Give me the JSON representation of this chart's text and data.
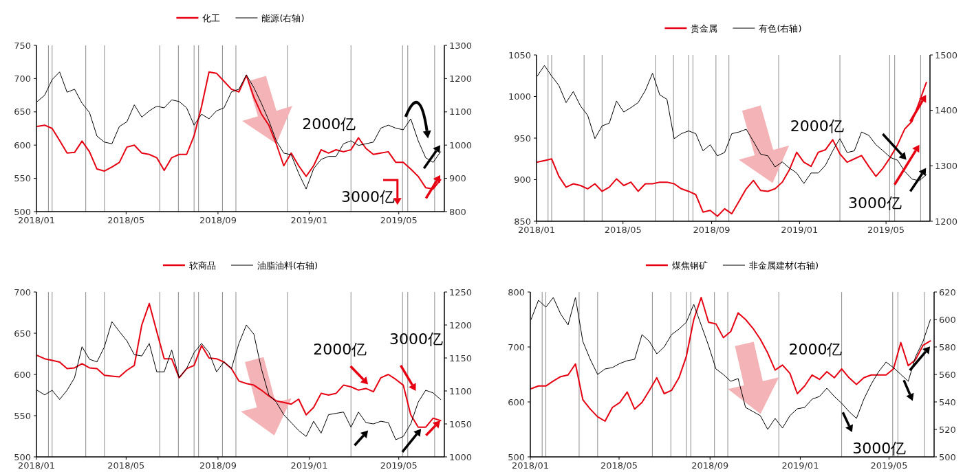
{
  "chart_data": [
    {
      "type": "line",
      "legend": "top",
      "xlim": [
        "2018-01-01",
        "2019-07-01"
      ],
      "xticks": [
        {
          "value": "2018-01-01",
          "label": "2018/01"
        },
        {
          "value": "2018-05-01",
          "label": "2018/05"
        },
        {
          "value": "2018-09-01",
          "label": "2018/09"
        },
        {
          "value": "2019-01-01",
          "label": "2019/01"
        },
        {
          "value": "2019-05-01",
          "label": "2019/05"
        }
      ],
      "ylim": [
        500,
        750
      ],
      "yticks": [
        500,
        550,
        600,
        650,
        700,
        750
      ],
      "y2lim": [
        800,
        1300
      ],
      "y2ticks": [
        800,
        900,
        1000,
        1100,
        1200,
        1300
      ],
      "x": [
        "2018-01-02",
        "2018-01-12",
        "2018-01-22",
        "2018-02-01",
        "2018-02-11",
        "2018-02-21",
        "2018-03-03",
        "2018-03-13",
        "2018-03-23",
        "2018-04-02",
        "2018-04-12",
        "2018-04-22",
        "2018-05-02",
        "2018-05-12",
        "2018-05-22",
        "2018-06-01",
        "2018-06-11",
        "2018-06-21",
        "2018-07-01",
        "2018-07-11",
        "2018-07-21",
        "2018-07-31",
        "2018-08-10",
        "2018-08-20",
        "2018-08-30",
        "2018-09-09",
        "2018-09-19",
        "2018-09-29",
        "2018-10-09",
        "2018-10-19",
        "2018-10-29",
        "2018-11-08",
        "2018-11-18",
        "2018-11-28",
        "2018-12-08",
        "2018-12-18",
        "2018-12-28",
        "2019-01-07",
        "2019-01-17",
        "2019-01-27",
        "2019-02-06",
        "2019-02-16",
        "2019-02-26",
        "2019-03-08",
        "2019-03-18",
        "2019-03-28",
        "2019-04-07",
        "2019-04-17",
        "2019-04-27",
        "2019-05-07",
        "2019-05-17",
        "2019-05-27",
        "2019-06-06",
        "2019-06-16",
        "2019-06-26"
      ],
      "series": [
        {
          "name": "化工",
          "color": "#e60012",
          "values": [
            628,
            630,
            625,
            607,
            588,
            589,
            606,
            590,
            564,
            561,
            567,
            574,
            597,
            600,
            588,
            586,
            581,
            562,
            581,
            586,
            586,
            614,
            658,
            710,
            708,
            696,
            684,
            680,
            705,
            672,
            647,
            630,
            602,
            569,
            588,
            569,
            553,
            569,
            593,
            588,
            593,
            590,
            593,
            611,
            595,
            586,
            588,
            590,
            574,
            574,
            564,
            553,
            536,
            534,
            548
          ]
        },
        {
          "name": "能源(右轴)",
          "color": "#000000",
          "axis": "y2",
          "values": [
            1131,
            1150,
            1197,
            1220,
            1159,
            1168,
            1126,
            1098,
            1027,
            1009,
            1004,
            1056,
            1070,
            1121,
            1084,
            1103,
            1117,
            1112,
            1136,
            1131,
            1112,
            1060,
            1093,
            1079,
            1103,
            1112,
            1160,
            1168,
            1211,
            1173,
            1126,
            1074,
            1013,
            976,
            971,
            915,
            868,
            929,
            957,
            966,
            966,
            1004,
            1013,
            999,
            1004,
            1009,
            1051,
            1060,
            1051,
            1046,
            1079,
            1013,
            962,
            948,
            980
          ]
        }
      ],
      "ref_lines": [
        {
          "axis": "x",
          "value": "2018-01-17"
        },
        {
          "axis": "x",
          "value": "2018-01-22"
        },
        {
          "axis": "x",
          "value": "2018-03-08"
        },
        {
          "axis": "x",
          "value": "2018-04-02"
        },
        {
          "axis": "x",
          "value": "2018-06-15"
        },
        {
          "axis": "x",
          "value": "2018-07-10"
        },
        {
          "axis": "x",
          "value": "2018-07-31"
        },
        {
          "axis": "x",
          "value": "2018-08-06"
        },
        {
          "axis": "x",
          "value": "2018-09-07"
        },
        {
          "axis": "x",
          "value": "2018-09-25"
        },
        {
          "axis": "x",
          "value": "2018-12-03"
        },
        {
          "axis": "x",
          "value": "2019-02-26"
        },
        {
          "axis": "x",
          "value": "2019-05-06"
        },
        {
          "axis": "x",
          "value": "2019-05-13"
        },
        {
          "axis": "x",
          "value": "2019-06-18"
        }
      ],
      "annotations": [
        {
          "text": "2000亿",
          "x": "2018-11-18",
          "y": 602
        },
        "3000亿"
      ]
    },
    {
      "type": "line",
      "legend": "top",
      "xlim": [
        "2018-01-01",
        "2019-07-01"
      ],
      "xticks": [
        {
          "value": "2018-01-01",
          "label": "2018/01"
        },
        {
          "value": "2018-05-01",
          "label": "2018/05"
        },
        {
          "value": "2018-09-01",
          "label": "2018/09"
        },
        {
          "value": "2019-01-01",
          "label": "2019/01"
        },
        {
          "value": "2019-05-01",
          "label": "2019/05"
        }
      ],
      "ylim": [
        850,
        1050
      ],
      "yticks": [
        850,
        900,
        950,
        1000,
        1050
      ],
      "y2lim": [
        1200,
        1500
      ],
      "y2ticks": [
        1200,
        1300,
        1400,
        1500
      ],
      "x": [
        "2018-01-02",
        "2018-01-12",
        "2018-01-22",
        "2018-02-01",
        "2018-02-11",
        "2018-02-21",
        "2018-03-03",
        "2018-03-13",
        "2018-03-23",
        "2018-04-02",
        "2018-04-12",
        "2018-04-22",
        "2018-05-02",
        "2018-05-12",
        "2018-05-22",
        "2018-06-01",
        "2018-06-11",
        "2018-06-21",
        "2018-07-01",
        "2018-07-11",
        "2018-07-21",
        "2018-07-31",
        "2018-08-10",
        "2018-08-20",
        "2018-08-30",
        "2018-09-09",
        "2018-09-19",
        "2018-09-29",
        "2018-10-09",
        "2018-10-19",
        "2018-10-29",
        "2018-11-08",
        "2018-11-18",
        "2018-11-28",
        "2018-12-08",
        "2018-12-18",
        "2018-12-28",
        "2019-01-07",
        "2019-01-17",
        "2019-01-27",
        "2019-02-06",
        "2019-02-16",
        "2019-02-26",
        "2019-03-08",
        "2019-03-18",
        "2019-03-28",
        "2019-04-07",
        "2019-04-17",
        "2019-04-27",
        "2019-05-07",
        "2019-05-17",
        "2019-05-27",
        "2019-06-06",
        "2019-06-16",
        "2019-06-26"
      ],
      "series": [
        {
          "name": "贵金属",
          "color": "#e60012",
          "values": [
            921,
            923,
            925,
            904,
            891,
            895,
            893,
            889,
            895,
            886,
            891,
            901,
            893,
            897,
            886,
            895,
            895,
            897,
            897,
            895,
            889,
            886,
            882,
            861,
            863,
            856,
            865,
            859,
            874,
            889,
            899,
            887,
            886,
            889,
            897,
            912,
            933,
            921,
            916,
            933,
            936,
            948,
            931,
            921,
            925,
            929,
            916,
            904,
            914,
            927,
            942,
            961,
            970,
            993,
            1017
          ]
        },
        {
          "name": "有色(右轴)",
          "color": "#000000",
          "axis": "y2",
          "values": [
            1462,
            1481,
            1462,
            1445,
            1414,
            1434,
            1408,
            1391,
            1349,
            1372,
            1377,
            1417,
            1397,
            1405,
            1414,
            1436,
            1467,
            1428,
            1420,
            1349,
            1358,
            1363,
            1358,
            1327,
            1338,
            1318,
            1324,
            1358,
            1361,
            1366,
            1344,
            1321,
            1318,
            1298,
            1307,
            1296,
            1287,
            1268,
            1287,
            1287,
            1301,
            1327,
            1349,
            1324,
            1327,
            1361,
            1355,
            1338,
            1327,
            1315,
            1310,
            1290,
            1276,
            1273,
            1284
          ]
        }
      ],
      "ref_lines": [
        {
          "axis": "x",
          "value": "2018-01-17"
        },
        {
          "axis": "x",
          "value": "2018-01-22"
        },
        {
          "axis": "x",
          "value": "2018-03-08"
        },
        {
          "axis": "x",
          "value": "2018-04-02"
        },
        {
          "axis": "x",
          "value": "2018-06-15"
        },
        {
          "axis": "x",
          "value": "2018-07-10"
        },
        {
          "axis": "x",
          "value": "2018-07-31"
        },
        {
          "axis": "x",
          "value": "2018-08-06"
        },
        {
          "axis": "x",
          "value": "2018-09-07"
        },
        {
          "axis": "x",
          "value": "2018-09-25"
        },
        {
          "axis": "x",
          "value": "2018-12-03"
        },
        {
          "axis": "x",
          "value": "2019-02-26"
        },
        {
          "axis": "x",
          "value": "2019-05-06"
        },
        {
          "axis": "x",
          "value": "2019-05-13"
        },
        {
          "axis": "x",
          "value": "2019-06-18"
        }
      ],
      "annotations": [
        "2000亿",
        "3000亿"
      ]
    },
    {
      "type": "line",
      "legend": "top",
      "xlim": [
        "2018-01-01",
        "2019-07-01"
      ],
      "xticks": [
        {
          "value": "2018-01-01",
          "label": "2018/01"
        },
        {
          "value": "2018-05-01",
          "label": "2018/05"
        },
        {
          "value": "2018-09-01",
          "label": "2018/09"
        },
        {
          "value": "2019-01-01",
          "label": "2019/01"
        },
        {
          "value": "2019-05-01",
          "label": "2019/05"
        }
      ],
      "ylim": [
        500,
        700
      ],
      "yticks": [
        500,
        550,
        600,
        650,
        700
      ],
      "y2lim": [
        1000,
        1250
      ],
      "y2ticks": [
        1000,
        1050,
        1100,
        1150,
        1200,
        1250
      ],
      "x": [
        "2018-01-02",
        "2018-01-12",
        "2018-01-22",
        "2018-02-01",
        "2018-02-11",
        "2018-02-21",
        "2018-03-03",
        "2018-03-13",
        "2018-03-23",
        "2018-04-02",
        "2018-04-12",
        "2018-04-22",
        "2018-05-02",
        "2018-05-12",
        "2018-05-22",
        "2018-06-01",
        "2018-06-11",
        "2018-06-21",
        "2018-07-01",
        "2018-07-11",
        "2018-07-21",
        "2018-07-31",
        "2018-08-10",
        "2018-08-20",
        "2018-08-30",
        "2018-09-09",
        "2018-09-19",
        "2018-09-29",
        "2018-10-09",
        "2018-10-19",
        "2018-10-29",
        "2018-11-08",
        "2018-11-18",
        "2018-11-28",
        "2018-12-08",
        "2018-12-18",
        "2018-12-28",
        "2019-01-07",
        "2019-01-17",
        "2019-01-27",
        "2019-02-06",
        "2019-02-16",
        "2019-02-26",
        "2019-03-08",
        "2019-03-18",
        "2019-03-28",
        "2019-04-07",
        "2019-04-17",
        "2019-04-27",
        "2019-05-07",
        "2019-05-17",
        "2019-05-27",
        "2019-06-06",
        "2019-06-16",
        "2019-06-26"
      ],
      "series": [
        {
          "name": "软商品",
          "color": "#e60012",
          "values": [
            623,
            619,
            617,
            615,
            607,
            608,
            613,
            608,
            607,
            599,
            598,
            597,
            605,
            611,
            660,
            686,
            652,
            619,
            619,
            596,
            607,
            611,
            635,
            620,
            619,
            615,
            607,
            592,
            589,
            587,
            581,
            574,
            568,
            566,
            564,
            570,
            551,
            560,
            577,
            575,
            577,
            587,
            585,
            581,
            583,
            579,
            596,
            600,
            594,
            587,
            551,
            536,
            536,
            547,
            544
          ]
        },
        {
          "name": "油脂油料(右轴)",
          "color": "#000000",
          "axis": "y2",
          "values": [
            1101,
            1094,
            1101,
            1087,
            1101,
            1120,
            1167,
            1148,
            1144,
            1167,
            1205,
            1190,
            1176,
            1155,
            1153,
            1172,
            1129,
            1129,
            1162,
            1120,
            1134,
            1158,
            1172,
            1158,
            1129,
            1144,
            1134,
            1172,
            1200,
            1186,
            1134,
            1094,
            1083,
            1064,
            1052,
            1040,
            1031,
            1054,
            1036,
            1064,
            1066,
            1068,
            1045,
            1068,
            1052,
            1050,
            1054,
            1052,
            1026,
            1031,
            1050,
            1083,
            1101,
            1097,
            1087
          ]
        }
      ],
      "ref_lines": [
        {
          "axis": "x",
          "value": "2018-01-17"
        },
        {
          "axis": "x",
          "value": "2018-01-22"
        },
        {
          "axis": "x",
          "value": "2018-03-08"
        },
        {
          "axis": "x",
          "value": "2018-04-02"
        },
        {
          "axis": "x",
          "value": "2018-06-15"
        },
        {
          "axis": "x",
          "value": "2018-07-10"
        },
        {
          "axis": "x",
          "value": "2018-07-31"
        },
        {
          "axis": "x",
          "value": "2018-08-06"
        },
        {
          "axis": "x",
          "value": "2018-09-07"
        },
        {
          "axis": "x",
          "value": "2018-09-25"
        },
        {
          "axis": "x",
          "value": "2018-12-03"
        },
        {
          "axis": "x",
          "value": "2019-02-26"
        },
        {
          "axis": "x",
          "value": "2019-05-06"
        },
        {
          "axis": "x",
          "value": "2019-05-13"
        },
        {
          "axis": "x",
          "value": "2019-06-18"
        }
      ],
      "annotations": [
        "2000亿",
        "3000亿"
      ]
    },
    {
      "type": "line",
      "legend": "top",
      "xlim": [
        "2018-01-01",
        "2019-07-01"
      ],
      "xticks": [
        {
          "value": "2018-01-01",
          "label": "2018/01"
        },
        {
          "value": "2018-05-01",
          "label": "2018/05"
        },
        {
          "value": "2018-09-01",
          "label": "2018/09"
        },
        {
          "value": "2019-01-01",
          "label": "2019/01"
        },
        {
          "value": "2019-05-01",
          "label": "2019/05"
        }
      ],
      "ylim": [
        500,
        800
      ],
      "yticks": [
        500,
        600,
        700,
        800
      ],
      "y2lim": [
        500,
        620
      ],
      "y2ticks": [
        500,
        520,
        540,
        560,
        580,
        600,
        620
      ],
      "x": [
        "2018-01-02",
        "2018-01-12",
        "2018-01-22",
        "2018-02-01",
        "2018-02-11",
        "2018-02-21",
        "2018-03-03",
        "2018-03-13",
        "2018-03-23",
        "2018-04-02",
        "2018-04-12",
        "2018-04-22",
        "2018-05-02",
        "2018-05-12",
        "2018-05-22",
        "2018-06-01",
        "2018-06-11",
        "2018-06-21",
        "2018-07-01",
        "2018-07-11",
        "2018-07-21",
        "2018-07-31",
        "2018-08-10",
        "2018-08-20",
        "2018-08-30",
        "2018-09-09",
        "2018-09-19",
        "2018-09-29",
        "2018-10-09",
        "2018-10-19",
        "2018-10-29",
        "2018-11-08",
        "2018-11-18",
        "2018-11-28",
        "2018-12-08",
        "2018-12-18",
        "2018-12-28",
        "2019-01-07",
        "2019-01-17",
        "2019-01-27",
        "2019-02-06",
        "2019-02-16",
        "2019-02-26",
        "2019-03-08",
        "2019-03-18",
        "2019-03-28",
        "2019-04-07",
        "2019-04-17",
        "2019-04-27",
        "2019-05-07",
        "2019-05-17",
        "2019-05-27",
        "2019-06-06",
        "2019-06-16",
        "2019-06-26"
      ],
      "series": [
        {
          "name": "煤焦钢矿",
          "color": "#e60012",
          "values": [
            624,
            629,
            629,
            638,
            646,
            649,
            669,
            604,
            587,
            573,
            565,
            590,
            599,
            618,
            587,
            599,
            621,
            644,
            615,
            621,
            644,
            683,
            750,
            790,
            745,
            742,
            717,
            728,
            762,
            750,
            734,
            714,
            689,
            658,
            667,
            652,
            615,
            629,
            649,
            641,
            655,
            644,
            660,
            644,
            632,
            644,
            649,
            649,
            649,
            660,
            708,
            666,
            677,
            703,
            711
          ]
        },
        {
          "name": "非金属建材(右轴)",
          "color": "#000000",
          "axis": "y2",
          "values": [
            600,
            614,
            609,
            616,
            604,
            596,
            616,
            584,
            571,
            560,
            564,
            565,
            568,
            570,
            571,
            589,
            584,
            575,
            580,
            589,
            593,
            598,
            611,
            596,
            581,
            564,
            560,
            555,
            557,
            536,
            533,
            530,
            520,
            528,
            521,
            530,
            535,
            536,
            542,
            544,
            550,
            544,
            539,
            533,
            528,
            542,
            553,
            562,
            569,
            565,
            560,
            555,
            573,
            584,
            600
          ]
        }
      ],
      "ref_lines": [
        {
          "axis": "x",
          "value": "2018-01-17"
        },
        {
          "axis": "x",
          "value": "2018-01-22"
        },
        {
          "axis": "x",
          "value": "2018-03-08"
        },
        {
          "axis": "x",
          "value": "2018-04-02"
        },
        {
          "axis": "x",
          "value": "2018-06-15"
        },
        {
          "axis": "x",
          "value": "2018-07-10"
        },
        {
          "axis": "x",
          "value": "2018-07-31"
        },
        {
          "axis": "x",
          "value": "2018-08-06"
        },
        {
          "axis": "x",
          "value": "2018-09-07"
        },
        {
          "axis": "x",
          "value": "2018-09-25"
        },
        {
          "axis": "x",
          "value": "2018-12-03"
        },
        {
          "axis": "x",
          "value": "2019-02-26"
        },
        {
          "axis": "x",
          "value": "2019-05-06"
        },
        {
          "axis": "x",
          "value": "2019-05-13"
        },
        {
          "axis": "x",
          "value": "2019-06-18"
        }
      ],
      "annotations": [
        "2000亿",
        "3000亿"
      ]
    }
  ]
}
